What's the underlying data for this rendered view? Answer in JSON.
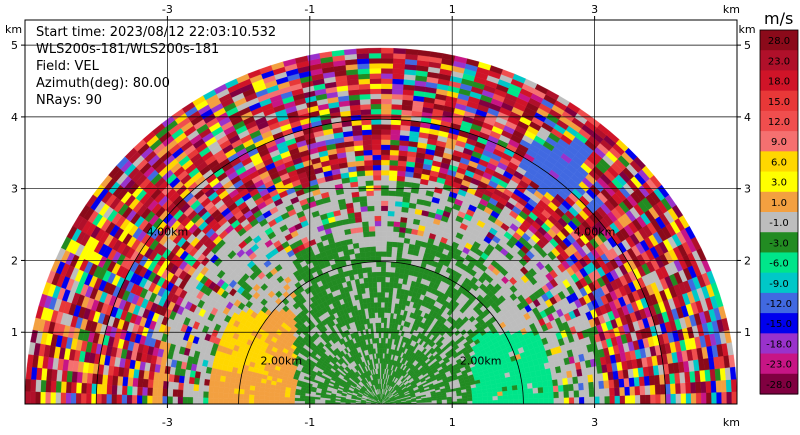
{
  "header": {
    "start_time": "Start time: 2023/08/12 22:03:10.532",
    "instrument": "WLS200s-181/WLS200s-181",
    "field": "Field: VEL",
    "azimuth": "Azimuth(deg): 80.00",
    "nrays": "NRays: 90"
  },
  "chart_data": {
    "type": "heatmap",
    "subtype": "rhi-polar-scan",
    "axis_unit_label": "km",
    "x_ticks": [
      "-3",
      "-1",
      "1",
      "3"
    ],
    "y_ticks": [
      "1",
      "2",
      "3",
      "4",
      "5"
    ],
    "xlim": [
      -5.0,
      5.0
    ],
    "ylim": [
      0,
      5.35
    ],
    "max_range_km": 5.0,
    "range_ring_labels": [
      "2.00km",
      "2.00km",
      "4.00km",
      "4.00km"
    ],
    "grid": true,
    "colorbar": {
      "unit": "m/s",
      "labels": [
        "28.0",
        "23.0",
        "18.0",
        "15.0",
        "12.0",
        "9.0",
        "6.0",
        "3.0",
        "1.0",
        "-1.0",
        "-3.0",
        "-6.0",
        "-9.0",
        "-12.0",
        "-15.0",
        "-18.0",
        "-23.0",
        "-28.0"
      ],
      "colors": [
        "#8b0a1a",
        "#b0102a",
        "#d01428",
        "#e83838",
        "#f04e4e",
        "#f57070",
        "#ffd700",
        "#ffff00",
        "#f3a040",
        "#bdbdbd",
        "#228b22",
        "#00e58a",
        "#00c8c8",
        "#4169e1",
        "#0000ee",
        "#9932cc",
        "#c71585",
        "#800040"
      ]
    },
    "regions": {
      "near_positive_color": "#f3a040",
      "near_strong_positive_color": "#ffd700",
      "calm_color": "#bdbdbd",
      "near_negative_color": "#228b22",
      "negative_patch_color": "#00e58a",
      "blue_patch_color": "#4169e1"
    }
  }
}
